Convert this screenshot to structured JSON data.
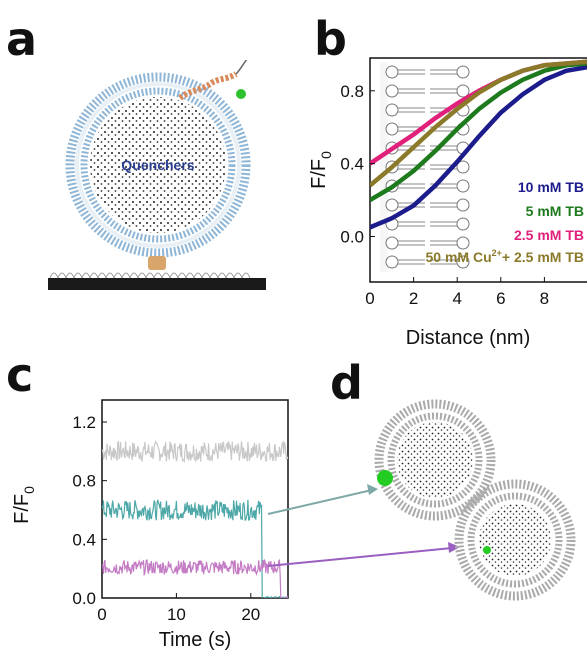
{
  "panels": {
    "a": "a",
    "b": "b",
    "c": "c",
    "d": "d"
  },
  "panel_a": {
    "vesicle_label": "Quenchers"
  },
  "chart_data": [
    {
      "type": "line",
      "panel": "b",
      "ylabel_main": "F/F",
      "ylabel_sub": "0",
      "xlabel": "Distance (nm)",
      "xlim": [
        0,
        10
      ],
      "ylim": [
        -0.25,
        0.98
      ],
      "xticks": [
        "0",
        "2",
        "4",
        "6",
        "8"
      ],
      "yticks": [
        "0.0",
        "0.4",
        "0.8"
      ],
      "legend_position": "bottom-right",
      "series": [
        {
          "name": "10 mM TB",
          "color": "#1c1c8c",
          "x": [
            0,
            1,
            2,
            3,
            4,
            5,
            6,
            7,
            8,
            9,
            10
          ],
          "y": [
            0.05,
            0.1,
            0.17,
            0.28,
            0.41,
            0.55,
            0.68,
            0.78,
            0.86,
            0.91,
            0.93
          ]
        },
        {
          "name": "5 mM TB",
          "color": "#1d7a1d",
          "x": [
            0,
            1,
            2,
            3,
            4,
            5,
            6,
            7,
            8,
            9,
            10
          ],
          "y": [
            0.2,
            0.27,
            0.36,
            0.47,
            0.59,
            0.7,
            0.79,
            0.86,
            0.91,
            0.94,
            0.95
          ]
        },
        {
          "name": "2.5 mM TB",
          "color": "#e0207a",
          "x": [
            0,
            1,
            2,
            3,
            4,
            5,
            6,
            7,
            8,
            9,
            10
          ],
          "y": [
            0.4,
            0.48,
            0.56,
            0.65,
            0.73,
            0.8,
            0.86,
            0.91,
            0.94,
            0.95,
            0.96
          ]
        },
        {
          "name_parts": [
            "50 mM Cu",
            "2+",
            "+ 2.5 mM TB"
          ],
          "color": "#8a7a2a",
          "x": [
            0,
            1,
            2,
            3,
            4,
            5,
            6,
            7,
            8,
            9,
            10
          ],
          "y": [
            0.28,
            0.38,
            0.49,
            0.6,
            0.7,
            0.79,
            0.86,
            0.91,
            0.94,
            0.95,
            0.96
          ]
        }
      ]
    },
    {
      "type": "line",
      "panel": "c",
      "ylabel_main": "F/F",
      "ylabel_sub": "0",
      "xlabel": "Time (s)",
      "xlim": [
        0,
        25
      ],
      "ylim": [
        0,
        1.35
      ],
      "xticks": [
        "0",
        "10",
        "20"
      ],
      "yticks": [
        "0.0",
        "0.4",
        "0.8",
        "1.2"
      ],
      "series": [
        {
          "color": "#c8c8c8",
          "mean": 1.0,
          "noise": 0.07,
          "end_time": 25,
          "after": null
        },
        {
          "color": "#4fa8a8",
          "mean": 0.6,
          "noise": 0.07,
          "end_time": 21.5,
          "after": 0.0
        },
        {
          "color": "#c47cc4",
          "mean": 0.21,
          "noise": 0.05,
          "end_time": 24,
          "after": 0.0
        }
      ]
    }
  ],
  "colors": {
    "arrow_teal": "#7fa8a8",
    "arrow_purple": "#9a5fc0",
    "fluor_green": "#22cc22"
  }
}
